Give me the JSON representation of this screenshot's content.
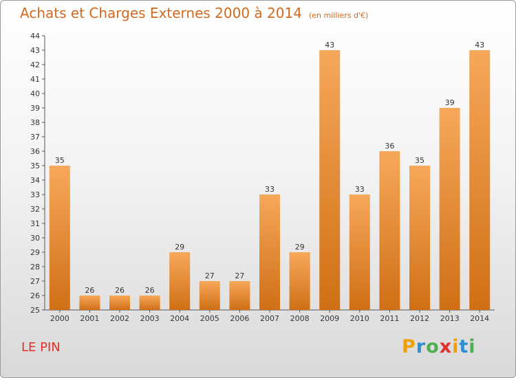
{
  "title": "Achats et Charges Externes 2000 à 2014",
  "subtitle": "(en milliers d'€)",
  "location": "LE PIN",
  "logo": {
    "text": "Proxiti",
    "letters": [
      "P",
      "r",
      "o",
      "x",
      "i",
      "t",
      "i"
    ],
    "colors": [
      "#f0a000",
      "#2f8fd0",
      "#4caf50",
      "#e0302a",
      "#f0a000",
      "#2f8fd0",
      "#4caf50"
    ]
  },
  "colors": {
    "title": "#d2691e",
    "location": "#e0302a",
    "bar_light": "#f6a85a",
    "bar_dark": "#d06f15"
  },
  "chart_data": {
    "type": "bar",
    "title": "Achats et Charges Externes 2000 à 2014",
    "subtitle": "(en milliers d'€)",
    "categories": [
      "2000",
      "2001",
      "2002",
      "2003",
      "2004",
      "2005",
      "2006",
      "2007",
      "2008",
      "2009",
      "2010",
      "2011",
      "2012",
      "2013",
      "2014"
    ],
    "values": [
      35,
      26,
      26,
      26,
      29,
      27,
      27,
      33,
      29,
      43,
      33,
      36,
      35,
      39,
      43
    ],
    "ylim": [
      25,
      44
    ],
    "yticks": [
      25,
      26,
      27,
      28,
      29,
      30,
      31,
      32,
      33,
      34,
      35,
      36,
      37,
      38,
      39,
      40,
      41,
      42,
      43,
      44
    ],
    "grid": false,
    "data_labels": true
  }
}
